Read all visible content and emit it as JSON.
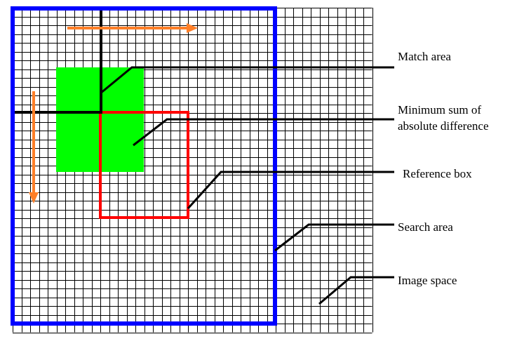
{
  "diagram": {
    "labels": {
      "match_area": "Match area",
      "min_sad_line1": "Minimum sum of",
      "min_sad_line2": "absolute difference",
      "reference_box": "Reference box",
      "search_area": "Search area",
      "image_space": "Image space"
    },
    "colors": {
      "grid": "#000000",
      "search_area": "#0000ff",
      "match_area": "#000000",
      "min_sad_region": "#00ff00",
      "reference_box": "#ff0000",
      "scan_arrows": "#ff7f27",
      "leader_lines": "#000000"
    },
    "icons": {
      "horizontal_scan": "arrow-right",
      "vertical_scan": "arrow-down"
    }
  }
}
